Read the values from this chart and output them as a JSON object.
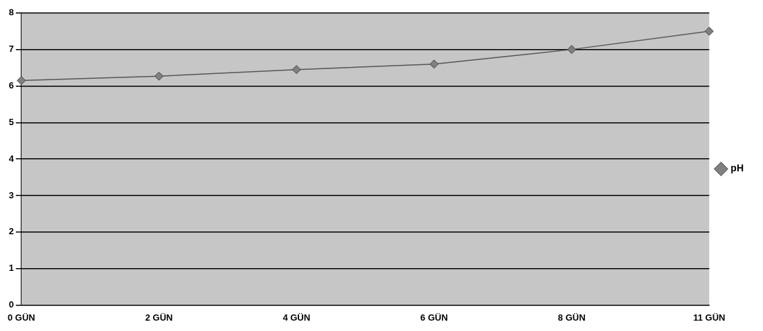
{
  "chart_data": {
    "type": "line",
    "categories": [
      "0 GÜN",
      "2 GÜN",
      "4 GÜN",
      "6 GÜN",
      "8 GÜN",
      "11 GÜN"
    ],
    "series": [
      {
        "name": "pH",
        "color": "#808080",
        "values": [
          6.15,
          6.27,
          6.45,
          6.6,
          7.0,
          7.5
        ]
      }
    ],
    "ylim": [
      0,
      8
    ],
    "yticks": [
      0,
      1,
      2,
      3,
      4,
      5,
      6,
      7,
      8
    ],
    "grid": "y",
    "legend": "right",
    "marker": "diamond",
    "line_style": "solid"
  }
}
